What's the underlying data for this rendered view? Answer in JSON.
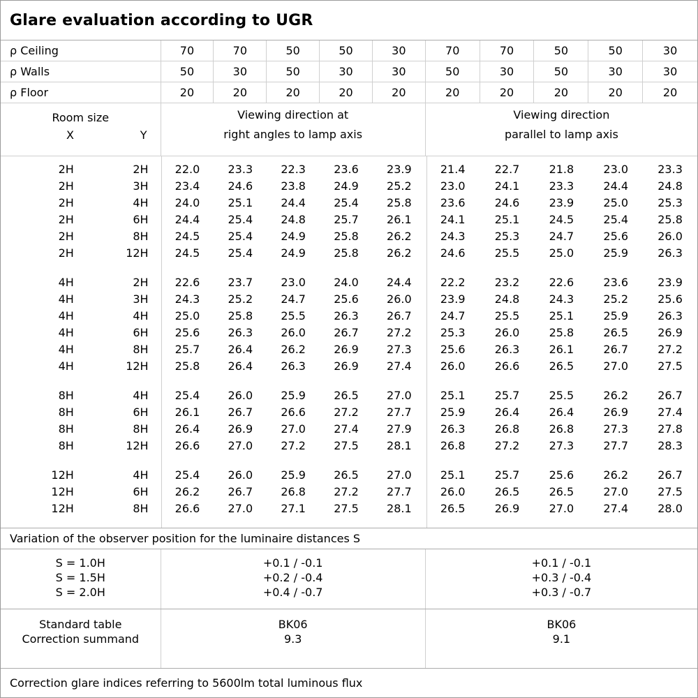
{
  "title": "Glare evaluation according to UGR",
  "reflectance": {
    "rows": [
      {
        "label": "ρ Ceiling",
        "values": [
          "70",
          "70",
          "50",
          "50",
          "30",
          "70",
          "70",
          "50",
          "50",
          "30"
        ]
      },
      {
        "label": "ρ Walls",
        "values": [
          "50",
          "30",
          "50",
          "30",
          "30",
          "50",
          "30",
          "50",
          "30",
          "30"
        ]
      },
      {
        "label": "ρ Floor",
        "values": [
          "20",
          "20",
          "20",
          "20",
          "20",
          "20",
          "20",
          "20",
          "20",
          "20"
        ]
      }
    ]
  },
  "header": {
    "room_size": "Room size",
    "x": "X",
    "y": "Y",
    "right_angles": [
      "Viewing direction at",
      "right angles to lamp axis"
    ],
    "parallel": [
      "Viewing direction",
      "parallel to lamp axis"
    ]
  },
  "ugr_table": {
    "groups": [
      {
        "rows": [
          {
            "x": "2H",
            "y": "2H",
            "right_angles": [
              "22.0",
              "23.3",
              "22.3",
              "23.6",
              "23.9"
            ],
            "parallel": [
              "21.4",
              "22.7",
              "21.8",
              "23.0",
              "23.3"
            ]
          },
          {
            "x": "2H",
            "y": "3H",
            "right_angles": [
              "23.4",
              "24.6",
              "23.8",
              "24.9",
              "25.2"
            ],
            "parallel": [
              "23.0",
              "24.1",
              "23.3",
              "24.4",
              "24.8"
            ]
          },
          {
            "x": "2H",
            "y": "4H",
            "right_angles": [
              "24.0",
              "25.1",
              "24.4",
              "25.4",
              "25.8"
            ],
            "parallel": [
              "23.6",
              "24.6",
              "23.9",
              "25.0",
              "25.3"
            ]
          },
          {
            "x": "2H",
            "y": "6H",
            "right_angles": [
              "24.4",
              "25.4",
              "24.8",
              "25.7",
              "26.1"
            ],
            "parallel": [
              "24.1",
              "25.1",
              "24.5",
              "25.4",
              "25.8"
            ]
          },
          {
            "x": "2H",
            "y": "8H",
            "right_angles": [
              "24.5",
              "25.4",
              "24.9",
              "25.8",
              "26.2"
            ],
            "parallel": [
              "24.3",
              "25.3",
              "24.7",
              "25.6",
              "26.0"
            ]
          },
          {
            "x": "2H",
            "y": "12H",
            "right_angles": [
              "24.5",
              "25.4",
              "24.9",
              "25.8",
              "26.2"
            ],
            "parallel": [
              "24.6",
              "25.5",
              "25.0",
              "25.9",
              "26.3"
            ]
          }
        ]
      },
      {
        "rows": [
          {
            "x": "4H",
            "y": "2H",
            "right_angles": [
              "22.6",
              "23.7",
              "23.0",
              "24.0",
              "24.4"
            ],
            "parallel": [
              "22.2",
              "23.2",
              "22.6",
              "23.6",
              "23.9"
            ]
          },
          {
            "x": "4H",
            "y": "3H",
            "right_angles": [
              "24.3",
              "25.2",
              "24.7",
              "25.6",
              "26.0"
            ],
            "parallel": [
              "23.9",
              "24.8",
              "24.3",
              "25.2",
              "25.6"
            ]
          },
          {
            "x": "4H",
            "y": "4H",
            "right_angles": [
              "25.0",
              "25.8",
              "25.5",
              "26.3",
              "26.7"
            ],
            "parallel": [
              "24.7",
              "25.5",
              "25.1",
              "25.9",
              "26.3"
            ]
          },
          {
            "x": "4H",
            "y": "6H",
            "right_angles": [
              "25.6",
              "26.3",
              "26.0",
              "26.7",
              "27.2"
            ],
            "parallel": [
              "25.3",
              "26.0",
              "25.8",
              "26.5",
              "26.9"
            ]
          },
          {
            "x": "4H",
            "y": "8H",
            "right_angles": [
              "25.7",
              "26.4",
              "26.2",
              "26.9",
              "27.3"
            ],
            "parallel": [
              "25.6",
              "26.3",
              "26.1",
              "26.7",
              "27.2"
            ]
          },
          {
            "x": "4H",
            "y": "12H",
            "right_angles": [
              "25.8",
              "26.4",
              "26.3",
              "26.9",
              "27.4"
            ],
            "parallel": [
              "26.0",
              "26.6",
              "26.5",
              "27.0",
              "27.5"
            ]
          }
        ]
      },
      {
        "rows": [
          {
            "x": "8H",
            "y": "4H",
            "right_angles": [
              "25.4",
              "26.0",
              "25.9",
              "26.5",
              "27.0"
            ],
            "parallel": [
              "25.1",
              "25.7",
              "25.5",
              "26.2",
              "26.7"
            ]
          },
          {
            "x": "8H",
            "y": "6H",
            "right_angles": [
              "26.1",
              "26.7",
              "26.6",
              "27.2",
              "27.7"
            ],
            "parallel": [
              "25.9",
              "26.4",
              "26.4",
              "26.9",
              "27.4"
            ]
          },
          {
            "x": "8H",
            "y": "8H",
            "right_angles": [
              "26.4",
              "26.9",
              "27.0",
              "27.4",
              "27.9"
            ],
            "parallel": [
              "26.3",
              "26.8",
              "26.8",
              "27.3",
              "27.8"
            ]
          },
          {
            "x": "8H",
            "y": "12H",
            "right_angles": [
              "26.6",
              "27.0",
              "27.2",
              "27.5",
              "28.1"
            ],
            "parallel": [
              "26.8",
              "27.2",
              "27.3",
              "27.7",
              "28.3"
            ]
          }
        ]
      },
      {
        "rows": [
          {
            "x": "12H",
            "y": "4H",
            "right_angles": [
              "25.4",
              "26.0",
              "25.9",
              "26.5",
              "27.0"
            ],
            "parallel": [
              "25.1",
              "25.7",
              "25.6",
              "26.2",
              "26.7"
            ]
          },
          {
            "x": "12H",
            "y": "6H",
            "right_angles": [
              "26.2",
              "26.7",
              "26.8",
              "27.2",
              "27.7"
            ],
            "parallel": [
              "26.0",
              "26.5",
              "26.5",
              "27.0",
              "27.5"
            ]
          },
          {
            "x": "12H",
            "y": "8H",
            "right_angles": [
              "26.6",
              "27.0",
              "27.1",
              "27.5",
              "28.1"
            ],
            "parallel": [
              "26.5",
              "26.9",
              "27.0",
              "27.4",
              "28.0"
            ]
          }
        ]
      }
    ]
  },
  "variation": {
    "caption": "Variation of the observer position for the luminaire distances S",
    "rows": [
      {
        "s": "S = 1.0H",
        "right_angles": "+0.1 / -0.1",
        "parallel": "+0.1 / -0.1"
      },
      {
        "s": "S = 1.5H",
        "right_angles": "+0.2 / -0.4",
        "parallel": "+0.3 / -0.4"
      },
      {
        "s": "S = 2.0H",
        "right_angles": "+0.4 / -0.7",
        "parallel": "+0.3 / -0.7"
      }
    ]
  },
  "standard": {
    "labels": [
      "Standard table",
      "Correction summand"
    ],
    "right_angles": [
      "BK06",
      "9.3"
    ],
    "parallel": [
      "BK06",
      "9.1"
    ]
  },
  "footer": "Correction glare indices referring to 5600lm total luminous flux",
  "colors": {
    "background": "#ffffff",
    "text": "#000000",
    "grid_line": "#cfcfcf",
    "section_line": "#ababab",
    "outer_border": "#999999"
  }
}
